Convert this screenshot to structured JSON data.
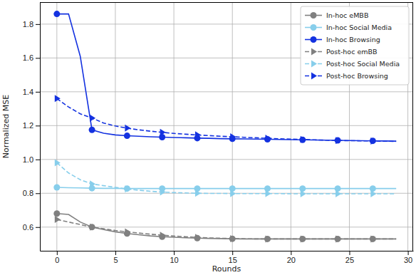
{
  "chart_data": {
    "type": "line",
    "x_label": "Rounds",
    "y_label": "Normalized MSE",
    "x": [
      0,
      1,
      2,
      3,
      4,
      5,
      6,
      7,
      8,
      9,
      10,
      11,
      12,
      13,
      14,
      15,
      16,
      17,
      18,
      19,
      20,
      21,
      22,
      23,
      24,
      25,
      26,
      27,
      28,
      29
    ],
    "xlim": [
      -1.45,
      30.45
    ],
    "xticks": [
      0,
      5,
      10,
      15,
      20,
      25,
      30
    ],
    "ylim": [
      0.46,
      1.93
    ],
    "yticks": [
      {
        "value": 0.6,
        "label": "0.6"
      },
      {
        "value": 0.8,
        "label": "0.8"
      },
      {
        "value": 1.0,
        "label": "1.0"
      },
      {
        "value": 1.2,
        "label": "1.2"
      },
      {
        "value": 1.4,
        "label": "1.4"
      },
      {
        "value": 1.6,
        "label": "1.6"
      },
      {
        "value": 1.8,
        "label": "1.8"
      }
    ],
    "grid": true,
    "legend": "upper-right",
    "series": [
      {
        "name": "In-hoc eMBB",
        "color": "#808080",
        "marker": "circle",
        "line_style": "solid",
        "values": [
          0.68,
          0.675,
          0.63,
          0.6,
          0.585,
          0.572,
          0.562,
          0.555,
          0.548,
          0.543,
          0.54,
          0.537,
          0.535,
          0.533,
          0.532,
          0.531,
          0.53,
          0.53,
          0.53,
          0.53,
          0.53,
          0.53,
          0.53,
          0.53,
          0.53,
          0.53,
          0.53,
          0.53,
          0.53,
          0.53
        ]
      },
      {
        "name": "In-hoc Social Media",
        "color": "#87ceeb",
        "marker": "circle",
        "line_style": "solid",
        "values": [
          0.835,
          0.833,
          0.832,
          0.83,
          0.829,
          0.829,
          0.828,
          0.828,
          0.828,
          0.828,
          0.828,
          0.828,
          0.828,
          0.828,
          0.828,
          0.828,
          0.828,
          0.828,
          0.828,
          0.828,
          0.828,
          0.828,
          0.828,
          0.828,
          0.828,
          0.828,
          0.828,
          0.828,
          0.828,
          0.828
        ]
      },
      {
        "name": "In-hoc Browsing",
        "color": "#1432e0",
        "marker": "circle",
        "line_style": "solid",
        "values": [
          1.86,
          1.86,
          1.61,
          1.175,
          1.155,
          1.145,
          1.14,
          1.137,
          1.134,
          1.132,
          1.13,
          1.128,
          1.126,
          1.125,
          1.123,
          1.122,
          1.121,
          1.12,
          1.119,
          1.118,
          1.117,
          1.116,
          1.115,
          1.114,
          1.113,
          1.112,
          1.111,
          1.11,
          1.109,
          1.108
        ]
      },
      {
        "name": "Post-hoc emBB",
        "color": "#808080",
        "marker": "triangle-right",
        "line_style": "dashed",
        "values": [
          0.645,
          0.63,
          0.615,
          0.6,
          0.59,
          0.58,
          0.572,
          0.565,
          0.558,
          0.552,
          0.547,
          0.543,
          0.539,
          0.536,
          0.534,
          0.532,
          0.531,
          0.53,
          0.53,
          0.53,
          0.53,
          0.53,
          0.53,
          0.53,
          0.53,
          0.53,
          0.53,
          0.53,
          0.53,
          0.53
        ]
      },
      {
        "name": "Post-hoc Social Media",
        "color": "#87ceeb",
        "marker": "triangle-right",
        "line_style": "dashed",
        "values": [
          0.98,
          0.92,
          0.88,
          0.855,
          0.845,
          0.835,
          0.825,
          0.818,
          0.812,
          0.807,
          0.804,
          0.802,
          0.8,
          0.799,
          0.799,
          0.798,
          0.798,
          0.798,
          0.798,
          0.798,
          0.797,
          0.797,
          0.797,
          0.797,
          0.797,
          0.797,
          0.797,
          0.797,
          0.797,
          0.797
        ]
      },
      {
        "name": "Post-hoc Browsing",
        "color": "#1432e0",
        "marker": "triangle-right",
        "line_style": "dashed",
        "values": [
          1.36,
          1.31,
          1.27,
          1.245,
          1.215,
          1.198,
          1.185,
          1.175,
          1.167,
          1.16,
          1.154,
          1.149,
          1.145,
          1.141,
          1.137,
          1.134,
          1.131,
          1.128,
          1.125,
          1.122,
          1.12,
          1.118,
          1.116,
          1.114,
          1.112,
          1.111,
          1.11,
          1.109,
          1.108,
          1.107
        ]
      }
    ]
  }
}
